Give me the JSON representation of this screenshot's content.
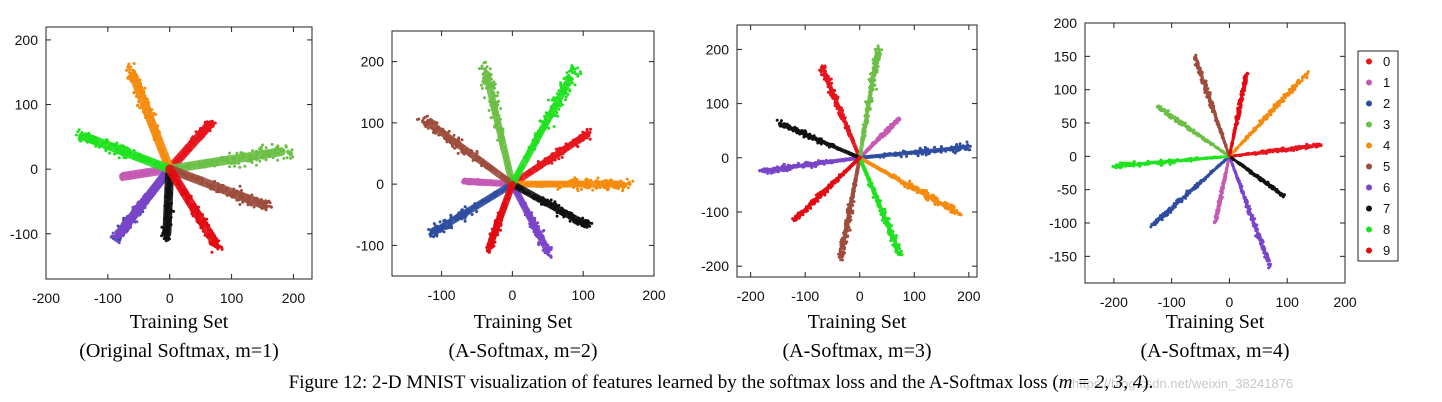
{
  "caption": {
    "text": "Figure 12: 2-D MNIST visualization of features learned by the softmax loss and the A-Softmax loss (",
    "math": "m = 2, 3, 4",
    "end": ")."
  },
  "watermark": "https://blog.csdn.net/weixin_38241876",
  "legend": {
    "labels": [
      "0",
      "1",
      "2",
      "3",
      "4",
      "5",
      "6",
      "7",
      "8",
      "9"
    ],
    "colors": [
      "#e8141c",
      "#c55ab4",
      "#2e4da0",
      "#6bbf45",
      "#f58a0c",
      "#9c4d3c",
      "#7a45c8",
      "#111111",
      "#1fe21f",
      "#e40a12"
    ]
  },
  "chart_data": [
    {
      "type": "scatter",
      "title": "",
      "xlabel": "Training Set",
      "sublabel": "(Original Softmax, m=1)",
      "xlim": [
        -200,
        230
      ],
      "ylim": [
        -170,
        220
      ],
      "xticks": [
        -200,
        -100,
        0,
        100,
        200
      ],
      "yticks": [
        -100,
        0,
        100,
        200
      ],
      "series": [
        {
          "class": "0",
          "tip": [
            70,
            75
          ]
        },
        {
          "class": "1",
          "tip": [
            -80,
            -12
          ]
        },
        {
          "class": "2",
          "tip": [
            -90,
            -110
          ]
        },
        {
          "class": "3",
          "tip": [
            200,
            30
          ]
        },
        {
          "class": "4",
          "tip": [
            -65,
            160
          ]
        },
        {
          "class": "5",
          "tip": [
            165,
            -60
          ]
        },
        {
          "class": "6",
          "tip": [
            -90,
            -110
          ]
        },
        {
          "class": "7",
          "tip": [
            -5,
            -110
          ]
        },
        {
          "class": "8",
          "tip": [
            -150,
            55
          ]
        },
        {
          "class": "9",
          "tip": [
            80,
            -125
          ]
        }
      ]
    },
    {
      "type": "scatter",
      "title": "",
      "xlabel": "Training Set",
      "sublabel": "(A-Softmax, m=2)",
      "xlim": [
        -170,
        200
      ],
      "ylim": [
        -150,
        250
      ],
      "xticks": [
        -100,
        0,
        100,
        200
      ],
      "yticks": [
        -100,
        0,
        100,
        200
      ],
      "series": [
        {
          "class": "0",
          "tip": [
            110,
            85
          ]
        },
        {
          "class": "1",
          "tip": [
            -70,
            5
          ]
        },
        {
          "class": "2",
          "tip": [
            -120,
            -85
          ]
        },
        {
          "class": "3",
          "tip": [
            -40,
            195
          ]
        },
        {
          "class": "4",
          "tip": [
            170,
            0
          ]
        },
        {
          "class": "5",
          "tip": [
            -130,
            110
          ]
        },
        {
          "class": "6",
          "tip": [
            55,
            -120
          ]
        },
        {
          "class": "7",
          "tip": [
            110,
            -70
          ]
        },
        {
          "class": "8",
          "tip": [
            90,
            190
          ]
        },
        {
          "class": "9",
          "tip": [
            -35,
            -110
          ]
        }
      ]
    },
    {
      "type": "scatter",
      "title": "",
      "xlabel": "Training Set",
      "sublabel": "(A-Softmax, m=3)",
      "xlim": [
        -225,
        215
      ],
      "ylim": [
        -220,
        245
      ],
      "xticks": [
        -200,
        -100,
        0,
        100,
        200
      ],
      "yticks": [
        -200,
        -100,
        0,
        100,
        200
      ],
      "series": [
        {
          "class": "0",
          "tip": [
            -70,
            170
          ]
        },
        {
          "class": "1",
          "tip": [
            75,
            75
          ]
        },
        {
          "class": "2",
          "tip": [
            200,
            20
          ]
        },
        {
          "class": "3",
          "tip": [
            35,
            210
          ]
        },
        {
          "class": "4",
          "tip": [
            185,
            -105
          ]
        },
        {
          "class": "5",
          "tip": [
            -35,
            -185
          ]
        },
        {
          "class": "6",
          "tip": [
            -185,
            -25
          ]
        },
        {
          "class": "7",
          "tip": [
            -150,
            65
          ]
        },
        {
          "class": "8",
          "tip": [
            75,
            -180
          ]
        },
        {
          "class": "9",
          "tip": [
            -120,
            -115
          ]
        }
      ]
    },
    {
      "type": "scatter",
      "title": "",
      "xlabel": "Training Set",
      "sublabel": "(A-Softmax, m=4)",
      "xlim": [
        -250,
        200
      ],
      "ylim": [
        -190,
        200
      ],
      "xticks": [
        -200,
        -100,
        0,
        100,
        200
      ],
      "yticks": [
        -150,
        -100,
        -50,
        0,
        50,
        100,
        150,
        200
      ],
      "legend": "right",
      "series": [
        {
          "class": "0",
          "tip": [
            160,
            17
          ]
        },
        {
          "class": "1",
          "tip": [
            -25,
            -100
          ]
        },
        {
          "class": "2",
          "tip": [
            -135,
            -105
          ]
        },
        {
          "class": "3",
          "tip": [
            -125,
            75
          ]
        },
        {
          "class": "4",
          "tip": [
            135,
            125
          ]
        },
        {
          "class": "5",
          "tip": [
            -60,
            150
          ]
        },
        {
          "class": "6",
          "tip": [
            70,
            -165
          ]
        },
        {
          "class": "7",
          "tip": [
            95,
            -60
          ]
        },
        {
          "class": "8",
          "tip": [
            -200,
            -15
          ]
        },
        {
          "class": "9",
          "tip": [
            30,
            125
          ]
        }
      ]
    }
  ]
}
